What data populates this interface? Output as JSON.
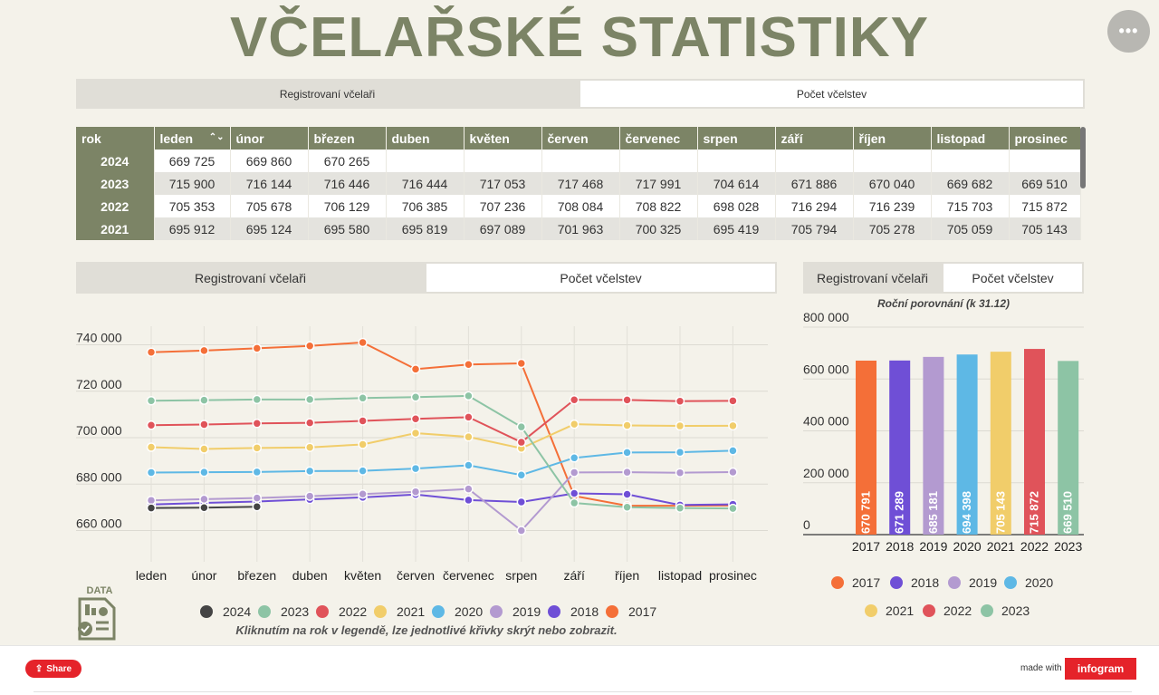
{
  "title": "VČELAŘSKÉ STATISTIKY",
  "menu_label": "•••",
  "top_tabs": [
    "Registrovaní včelaři",
    "Počet včelstev"
  ],
  "line_tabs": [
    "Registrovaní včelaři",
    "Počet včelstev"
  ],
  "bar_tabs": [
    "Registrovaní včelaři",
    "Počet včelstev"
  ],
  "table": {
    "headers": [
      "rok",
      "leden",
      "únor",
      "březen",
      "duben",
      "květen",
      "červen",
      "červenec",
      "srpen",
      "září",
      "říjen",
      "listopad",
      "prosinec"
    ],
    "sort_icon": "⌃⌄",
    "rows": [
      {
        "year": "2024",
        "cells": [
          "669 725",
          "669 860",
          "670 265",
          "",
          "",
          "",
          "",
          "",
          "",
          "",
          "",
          ""
        ]
      },
      {
        "year": "2023",
        "cells": [
          "715 900",
          "716 144",
          "716 446",
          "716 444",
          "717 053",
          "717 468",
          "717 991",
          "704 614",
          "671 886",
          "670 040",
          "669 682",
          "669 510"
        ]
      },
      {
        "year": "2022",
        "cells": [
          "705 353",
          "705 678",
          "706 129",
          "706 385",
          "707 236",
          "708 084",
          "708 822",
          "698 028",
          "716 294",
          "716 239",
          "715 703",
          "715 872"
        ]
      },
      {
        "year": "2021",
        "cells": [
          "695 912",
          "695 124",
          "695 580",
          "695 819",
          "697 089",
          "701 963",
          "700 325",
          "695 419",
          "705 794",
          "705 278",
          "705 059",
          "705 143"
        ]
      }
    ]
  },
  "chart_data": [
    {
      "type": "line",
      "categories": [
        "leden",
        "únor",
        "březen",
        "duben",
        "květen",
        "červen",
        "červenec",
        "srpen",
        "září",
        "říjen",
        "listopad",
        "prosinec"
      ],
      "yticks": [
        "660 000",
        "680 000",
        "700 000",
        "720 000",
        "740 000"
      ],
      "ylim": [
        652000,
        748000
      ],
      "grid": true,
      "legend_position": "bottom",
      "series": [
        {
          "name": "2024",
          "color": "#444444",
          "values": [
            669725,
            669860,
            670265,
            null,
            null,
            null,
            null,
            null,
            null,
            null,
            null,
            null
          ]
        },
        {
          "name": "2023",
          "color": "#8dc4a5",
          "values": [
            715900,
            716144,
            716446,
            716444,
            717053,
            717468,
            717991,
            704614,
            671886,
            670040,
            669682,
            669510
          ]
        },
        {
          "name": "2022",
          "color": "#e0535a",
          "values": [
            705353,
            705678,
            706129,
            706385,
            707236,
            708084,
            708822,
            698028,
            716294,
            716239,
            715703,
            715872
          ]
        },
        {
          "name": "2021",
          "color": "#f1cd6a",
          "values": [
            695912,
            695124,
            695580,
            695819,
            697089,
            701963,
            700325,
            695419,
            705794,
            705278,
            705059,
            705143
          ]
        },
        {
          "name": "2020",
          "color": "#5eb8e5",
          "values": [
            685000,
            685100,
            685200,
            685600,
            685700,
            686700,
            688100,
            683900,
            691300,
            693600,
            693700,
            694398
          ]
        },
        {
          "name": "2019",
          "color": "#b39ad0",
          "values": [
            673000,
            673500,
            674000,
            674800,
            675700,
            676700,
            677900,
            660000,
            685000,
            685100,
            684900,
            685181
          ]
        },
        {
          "name": "2018",
          "color": "#6f4fd6",
          "values": [
            671200,
            671900,
            672500,
            673400,
            674300,
            675500,
            673100,
            672300,
            676000,
            675600,
            671000,
            671289
          ]
        },
        {
          "name": "2017",
          "color": "#f46f38",
          "values": [
            736800,
            737500,
            738500,
            739500,
            741000,
            729500,
            731500,
            732000,
            674900,
            670700,
            670700,
            670791
          ]
        }
      ]
    },
    {
      "type": "bar",
      "title": "Roční porovnání (k 31.12)",
      "categories": [
        "2017",
        "2018",
        "2019",
        "2020",
        "2021",
        "2022",
        "2023"
      ],
      "values": [
        670791,
        671289,
        685181,
        694398,
        705143,
        715872,
        669510
      ],
      "value_labels": [
        "670 791",
        "671 289",
        "685 181",
        "694 398",
        "705 143",
        "715 872",
        "669 510"
      ],
      "colors": [
        "#f46f38",
        "#6f4fd6",
        "#b39ad0",
        "#5eb8e5",
        "#f1cd6a",
        "#e0535a",
        "#8dc4a5"
      ],
      "yticks": [
        "0",
        "200 000",
        "400 000",
        "600 000",
        "800 000"
      ],
      "ylim": [
        0,
        800000
      ],
      "grid": true,
      "legend_position": "bottom"
    }
  ],
  "legend_note": "Kliknutím na rok v legendě, lze jednotlivé křivky skrýt nebo zobrazit.",
  "data_icon_label": "DATA",
  "footer": {
    "share": "Share",
    "made_with": "made with",
    "brand": "infogram"
  }
}
